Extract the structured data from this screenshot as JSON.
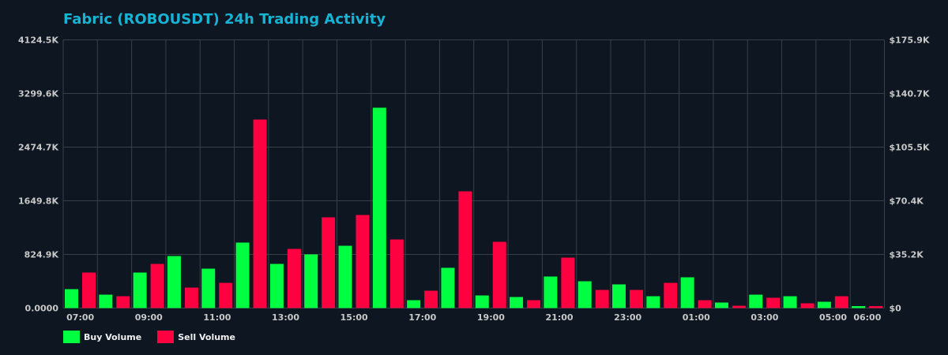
{
  "title": "Fabric (ROBOUSDT) 24h Trading Activity",
  "colors": {
    "background": "#0d1621",
    "title": "#17b3d4",
    "buy": "#00ff41",
    "sell": "#ff0040",
    "grid": "#3a4049",
    "tick_text": "#c8c8c8"
  },
  "legend": [
    {
      "label": "Buy Volume",
      "color": "#00ff41"
    },
    {
      "label": "Sell Volume",
      "color": "#ff0040"
    }
  ],
  "chart_data": {
    "type": "bar",
    "title": "Fabric (ROBOUSDT) 24h Trading Activity",
    "xlabel": "",
    "ylabel": "",
    "categories": [
      "07:00",
      "08:00",
      "09:00",
      "10:00",
      "11:00",
      "12:00",
      "13:00",
      "14:00",
      "15:00",
      "16:00",
      "17:00",
      "18:00",
      "19:00",
      "20:00",
      "21:00",
      "22:00",
      "23:00",
      "00:00",
      "01:00",
      "02:00",
      "03:00",
      "04:00",
      "05:00",
      "06:00"
    ],
    "x_tick_labels": [
      "07:00",
      "09:00",
      "11:00",
      "13:00",
      "15:00",
      "17:00",
      "19:00",
      "21:00",
      "23:00",
      "01:00",
      "03:00",
      "05:00",
      "06:00"
    ],
    "x_tick_indices": [
      0,
      2,
      4,
      6,
      8,
      10,
      12,
      14,
      16,
      18,
      20,
      22,
      23
    ],
    "series": [
      {
        "name": "Buy Volume",
        "color": "#00ff41",
        "values": [
          291,
          206,
          546,
          800,
          606,
          1007,
          679,
          825,
          958,
          3081,
          121,
          619,
          194,
          170,
          485,
          412,
          364,
          182,
          473,
          85,
          206,
          182,
          97,
          30
        ]
      },
      {
        "name": "Sell Volume",
        "color": "#ff0040",
        "values": [
          546,
          182,
          679,
          315,
          388,
          2899,
          910,
          1395,
          1431,
          1055,
          267,
          1795,
          1019,
          121,
          776,
          279,
          279,
          388,
          121,
          36,
          158,
          73,
          182,
          30
        ]
      }
    ],
    "units": "K",
    "ylim": [
      0,
      4124.5
    ],
    "y_left_ticks": [
      "0.0000",
      "824.9K",
      "1649.8K",
      "2474.7K",
      "3299.6K",
      "4124.5K"
    ],
    "y_right_ticks": [
      "$0",
      "$35.2K",
      "$70.4K",
      "$105.5K",
      "$140.7K",
      "$175.9K"
    ],
    "y_right_lim": [
      0,
      175.9
    ],
    "grid": true,
    "legend_position": "bottom-left"
  }
}
